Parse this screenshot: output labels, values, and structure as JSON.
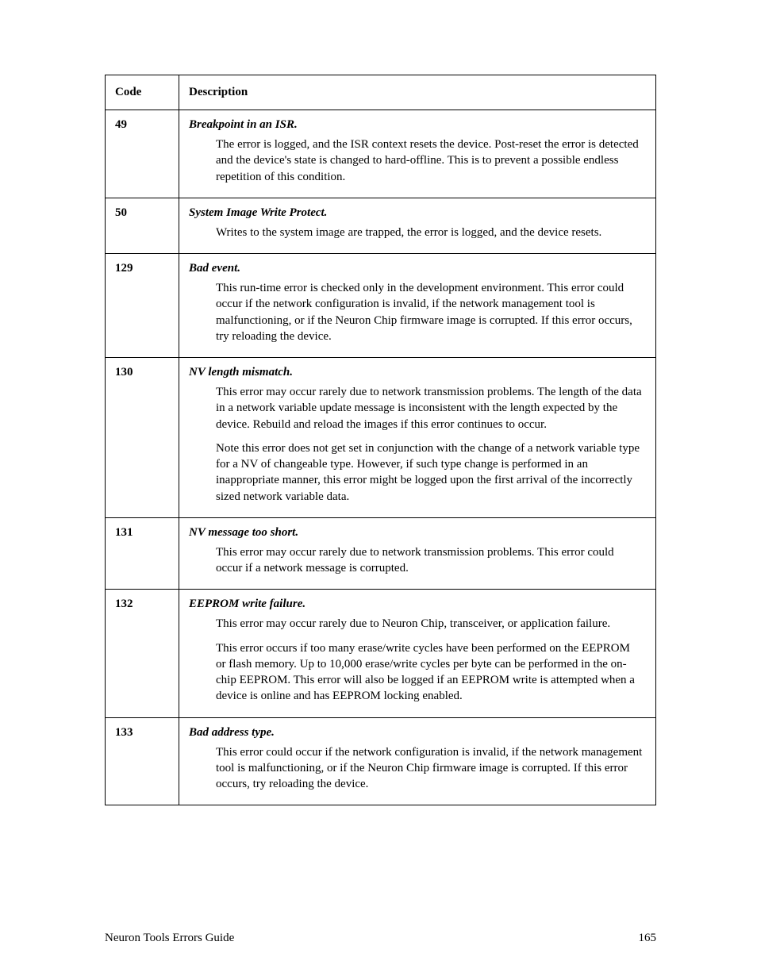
{
  "table": {
    "headers": {
      "code": "Code",
      "description": "Description"
    },
    "rows": [
      {
        "code": "49",
        "title": "Breakpoint in an ISR.",
        "paragraphs": [
          "The error is logged, and the ISR context resets the device.  Post-reset the error is detected and the device's state is changed to hard-offline.  This is to prevent a possible endless repetition of this condition."
        ]
      },
      {
        "code": "50",
        "title": "System Image Write Protect.",
        "paragraphs": [
          "Writes to the system image are trapped, the error is logged, and the device resets."
        ]
      },
      {
        "code": "129",
        "title": "Bad event.",
        "paragraphs": [
          "This run-time error is checked only in the development environment.  This error could occur if the network configuration is invalid, if the network management tool is malfunctioning, or if the Neuron Chip firmware image is corrupted.  If this error occurs, try reloading the device."
        ]
      },
      {
        "code": "130",
        "title": "NV length mismatch.",
        "paragraphs": [
          "This error may occur rarely due to network transmission problems.  The length of the data in a network variable update message is inconsistent with the length expected by the device.  Rebuild and reload the images if this error continues to occur.",
          "Note this error does not get set in conjunction with the change of a network variable type for a NV of changeable type.  However, if such type change is performed in an inappropriate manner, this error might be logged upon the first arrival of the incorrectly sized network variable data."
        ]
      },
      {
        "code": "131",
        "title": "NV message too short.",
        "paragraphs": [
          "This error may occur rarely due to network transmission problems.  This error could occur if a network message is corrupted."
        ]
      },
      {
        "code": "132",
        "title": "EEPROM write failure.",
        "paragraphs": [
          "This error may occur rarely due to Neuron Chip, transceiver, or application failure.",
          "This error occurs if too many erase/write cycles have been performed on the EEPROM or flash memory.  Up to 10,000 erase/write cycles per byte can be performed in the on-chip EEPROM.  This error will also be logged if an EEPROM write is attempted when a device is online and has EEPROM locking enabled."
        ]
      },
      {
        "code": "133",
        "title": "Bad address type.",
        "paragraphs": [
          "This error could occur if the network configuration is invalid, if the network management tool is malfunctioning, or if the Neuron Chip firmware image is corrupted.  If this error occurs, try reloading the device."
        ]
      }
    ]
  },
  "footer": {
    "title": "Neuron Tools Errors Guide",
    "page": "165"
  }
}
